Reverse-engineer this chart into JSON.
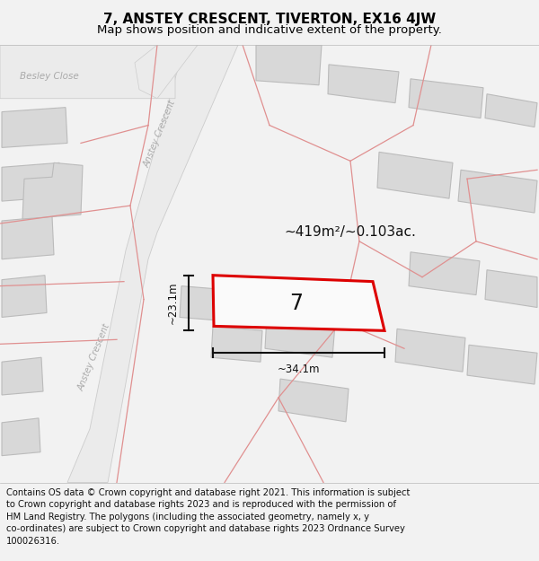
{
  "title": "7, ANSTEY CRESCENT, TIVERTON, EX16 4JW",
  "subtitle": "Map shows position and indicative extent of the property.",
  "footer_lines": [
    "Contains OS data © Crown copyright and database right 2021. This information is subject to Crown copyright and database rights 2023 and is reproduced with the permission of",
    "HM Land Registry. The polygons (including the associated geometry, namely x, y co-ordinates) are subject to Crown copyright and database rights 2023 Ordnance Survey",
    "100026316."
  ],
  "area_label": "~419m²/~0.103ac.",
  "width_label": "~34.1m",
  "height_label": "~23.1m",
  "number_label": "7",
  "map_bg": "#ffffff",
  "road_bg": "#eeeeee",
  "building_color": "#d8d8d8",
  "building_edge": "#bbbbbb",
  "pink_line_color": "#e09090",
  "road_label_color": "#aaaaaa",
  "highlight_color": "#dd0000",
  "dim_color": "#111111",
  "title_fontsize": 11,
  "subtitle_fontsize": 9.5,
  "footer_fontsize": 7.2
}
